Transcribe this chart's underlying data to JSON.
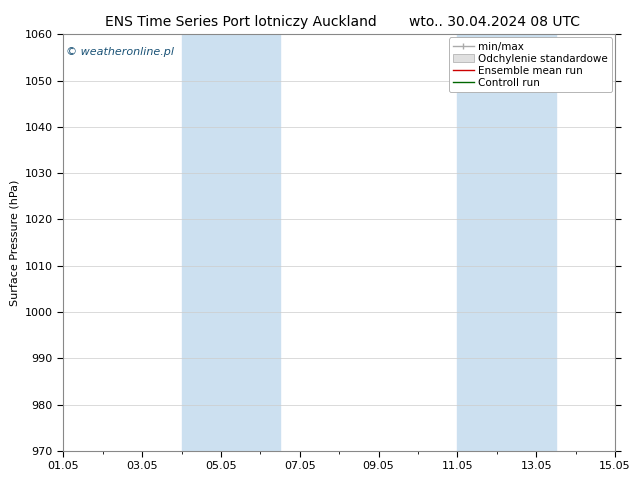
{
  "title_left": "ENS Time Series Port lotniczy Auckland",
  "title_right": "wto.. 30.04.2024 08 UTC",
  "ylabel": "Surface Pressure (hPa)",
  "ylim": [
    970,
    1060
  ],
  "yticks": [
    970,
    980,
    990,
    1000,
    1010,
    1020,
    1030,
    1040,
    1050,
    1060
  ],
  "xlim_start": 0,
  "xlim_end": 14,
  "xtick_labels": [
    "01.05",
    "03.05",
    "05.05",
    "07.05",
    "09.05",
    "11.05",
    "13.05",
    "15.05"
  ],
  "xtick_positions": [
    0,
    2,
    4,
    6,
    8,
    10,
    12,
    14
  ],
  "shade_bands": [
    {
      "xmin": 3.0,
      "xmax": 5.5,
      "color": "#cce0f0",
      "alpha": 1.0
    },
    {
      "xmin": 10.0,
      "xmax": 12.5,
      "color": "#cce0f0",
      "alpha": 1.0
    }
  ],
  "legend_entries": [
    {
      "label": "min/max",
      "color": "#aaaaaa",
      "lw": 1.0
    },
    {
      "label": "Odchylenie standardowe",
      "color": "#cccccc",
      "lw": 1.0
    },
    {
      "label": "Ensemble mean run",
      "color": "#cc0000",
      "lw": 1.0
    },
    {
      "label": "Controll run",
      "color": "#006600",
      "lw": 1.0
    }
  ],
  "watermark": "© weatheronline.pl",
  "watermark_color": "#1a5276",
  "bg_color": "#ffffff",
  "plot_bg_color": "#ffffff",
  "title_fontsize": 10,
  "axis_fontsize": 8,
  "tick_fontsize": 8,
  "legend_fontsize": 7.5
}
